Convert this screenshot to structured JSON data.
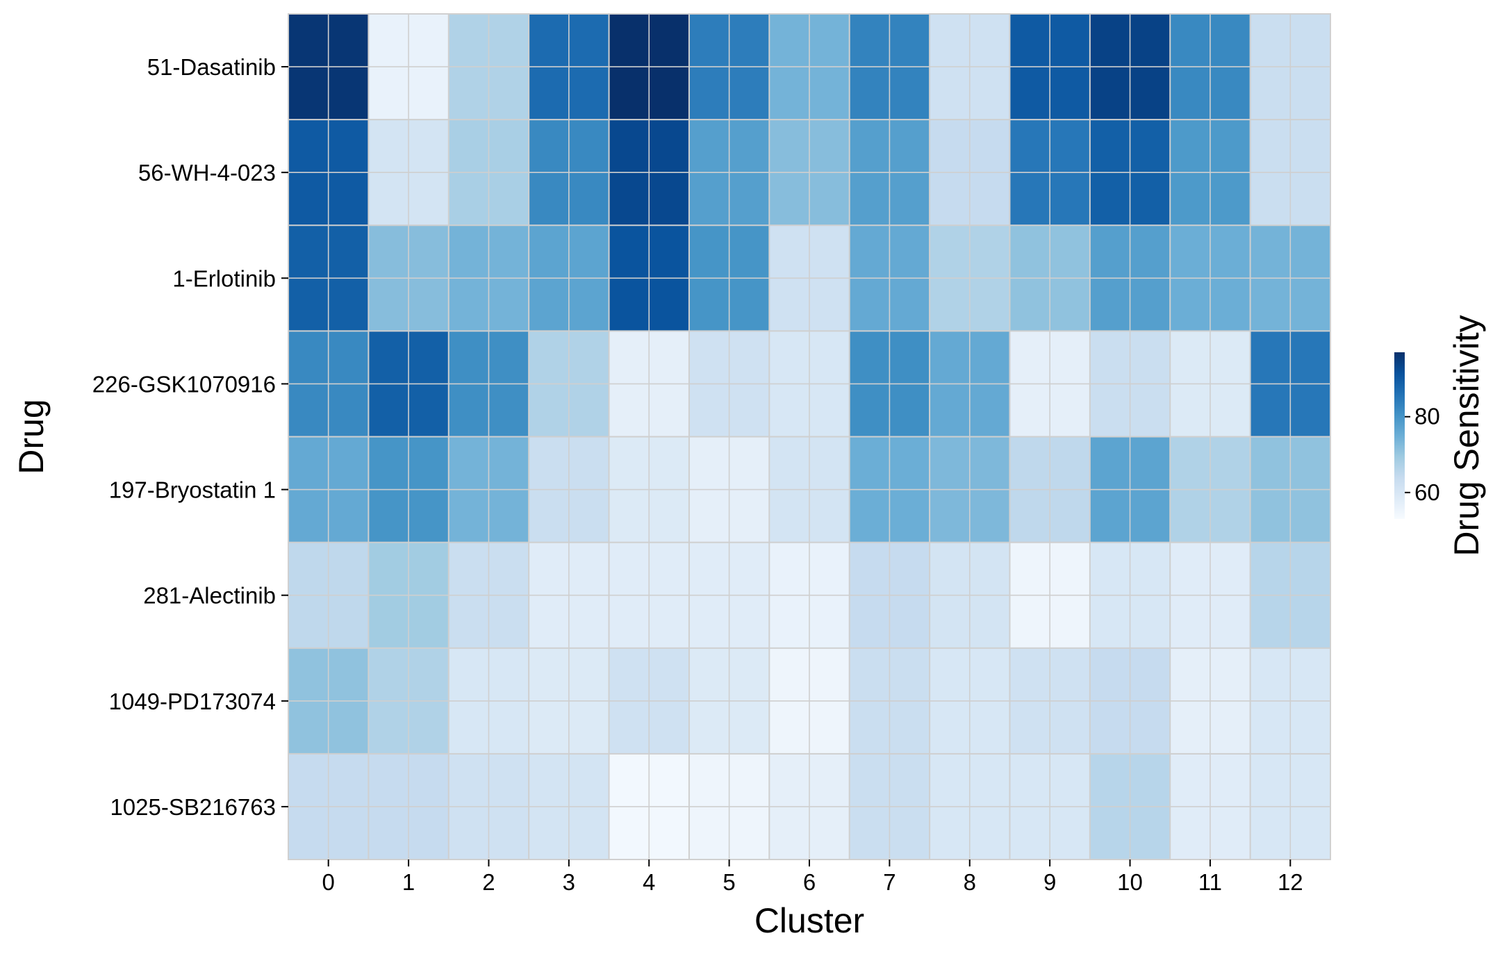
{
  "chart_data": {
    "type": "heatmap",
    "xlabel": "Cluster",
    "ylabel": "Drug",
    "colorbar_label": "Drug Sensitivity",
    "colormap": "Blues",
    "vmin": 53,
    "vmax": 97,
    "colorbar_ticks": [
      60,
      80
    ],
    "x_categories": [
      "0",
      "1",
      "2",
      "3",
      "4",
      "5",
      "6",
      "7",
      "8",
      "9",
      "10",
      "11",
      "12"
    ],
    "y_categories": [
      "51-Dasatinib",
      "56-WH-4-023",
      "1-Erlotinib",
      "226-GSK1070916",
      "197-Bryostatin 1",
      "281-Alectinib",
      "1049-PD173074",
      "1025-SB216763"
    ],
    "values": [
      [
        96,
        56,
        67,
        87,
        97,
        84,
        74,
        83,
        62,
        90,
        94,
        82,
        63
      ],
      [
        90,
        61,
        68,
        82,
        93,
        78,
        72,
        78,
        64,
        85,
        89,
        79,
        63
      ],
      [
        89,
        72,
        74,
        77,
        91,
        80,
        62,
        76,
        67,
        71,
        78,
        75,
        74
      ],
      [
        82,
        89,
        81,
        67,
        57,
        62,
        60,
        81,
        76,
        57,
        63,
        59,
        85
      ],
      [
        76,
        80,
        74,
        63,
        59,
        57,
        61,
        75,
        73,
        65,
        77,
        67,
        71
      ],
      [
        65,
        69,
        63,
        58,
        58,
        58,
        56,
        64,
        61,
        55,
        60,
        58,
        66
      ],
      [
        71,
        67,
        60,
        59,
        62,
        59,
        55,
        63,
        60,
        62,
        64,
        57,
        60
      ],
      [
        64,
        64,
        62,
        61,
        54,
        55,
        57,
        63,
        60,
        60,
        66,
        58,
        60
      ]
    ],
    "grid": true
  }
}
